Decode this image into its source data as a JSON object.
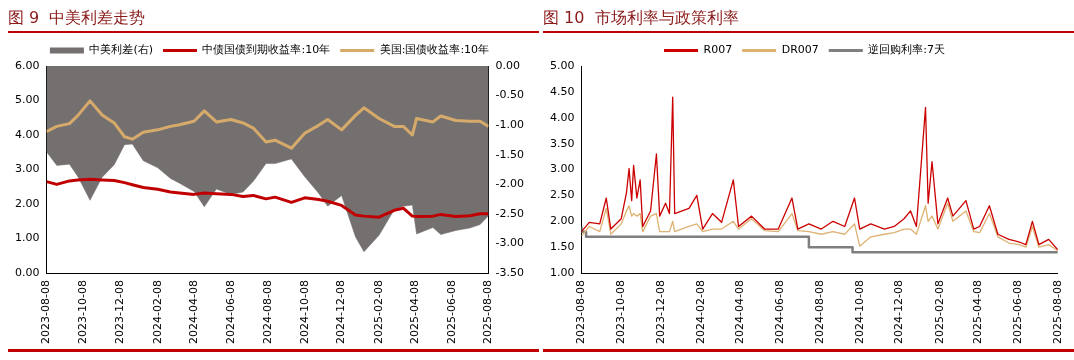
{
  "chart_data": [
    {
      "type": "line",
      "title": "图 9  中美利差走势",
      "legend": "top",
      "grid": false,
      "marker": "none",
      "x": [
        "2023-08-08",
        "2023-08-25",
        "2023-09-15",
        "2023-09-29",
        "2023-10-19",
        "2023-11-08",
        "2023-11-28",
        "2023-12-15",
        "2023-12-28",
        "2024-01-15",
        "2024-02-08",
        "2024-02-29",
        "2024-03-15",
        "2024-04-08",
        "2024-04-25",
        "2024-05-15",
        "2024-06-08",
        "2024-06-28",
        "2024-07-15",
        "2024-08-05",
        "2024-08-20",
        "2024-09-16",
        "2024-10-08",
        "2024-10-31",
        "2024-11-15",
        "2024-12-08",
        "2024-12-31",
        "2025-01-14",
        "2025-02-08",
        "2025-03-05",
        "2025-03-20",
        "2025-04-04",
        "2025-04-11",
        "2025-05-08",
        "2025-05-21",
        "2025-06-15",
        "2025-07-08",
        "2025-07-25",
        "2025-08-08"
      ],
      "series": [
        {
          "name": "中美利差(右)",
          "type": "area",
          "axis": "y2",
          "color": "#757070",
          "values": [
            -1.45,
            -1.68,
            -1.66,
            -1.87,
            -2.27,
            -1.88,
            -1.67,
            -1.33,
            -1.32,
            -1.6,
            -1.72,
            -1.9,
            -1.98,
            -2.12,
            -2.38,
            -2.08,
            -2.17,
            -2.13,
            -1.95,
            -1.65,
            -1.65,
            -1.57,
            -1.87,
            -2.15,
            -2.37,
            -2.19,
            -2.89,
            -3.14,
            -2.86,
            -2.43,
            -2.37,
            -2.35,
            -2.84,
            -2.73,
            -2.85,
            -2.78,
            -2.74,
            -2.68,
            -2.53
          ]
        },
        {
          "name": "中债国债到期收益率:10年",
          "color": "#c00000",
          "values": [
            2.65,
            2.57,
            2.67,
            2.7,
            2.72,
            2.7,
            2.68,
            2.62,
            2.56,
            2.48,
            2.43,
            2.35,
            2.32,
            2.28,
            2.32,
            2.3,
            2.28,
            2.22,
            2.25,
            2.15,
            2.2,
            2.05,
            2.18,
            2.13,
            2.08,
            1.96,
            1.68,
            1.65,
            1.62,
            1.82,
            1.88,
            1.65,
            1.64,
            1.65,
            1.7,
            1.64,
            1.66,
            1.72,
            1.72
          ]
        },
        {
          "name": "美国:国债收益率:10年",
          "color": "#d6aa6a",
          "values": [
            4.1,
            4.25,
            4.33,
            4.57,
            4.99,
            4.58,
            4.35,
            3.95,
            3.88,
            4.08,
            4.15,
            4.25,
            4.3,
            4.4,
            4.7,
            4.38,
            4.45,
            4.35,
            4.2,
            3.8,
            3.85,
            3.62,
            4.05,
            4.28,
            4.45,
            4.15,
            4.57,
            4.79,
            4.48,
            4.25,
            4.25,
            4,
            4.48,
            4.38,
            4.55,
            4.42,
            4.4,
            4.4,
            4.25
          ]
        }
      ],
      "xlim": [
        "2023-08-08",
        "2025-08-08"
      ],
      "xticks": [
        "2023-08-08",
        "2023-10-08",
        "2023-12-08",
        "2024-02-08",
        "2024-04-08",
        "2024-06-08",
        "2024-08-08",
        "2024-10-08",
        "2024-12-08",
        "2025-02-08",
        "2025-04-08",
        "2025-06-08",
        "2025-08-08"
      ],
      "ylim": [
        0,
        6
      ],
      "yticks": [
        {
          "value": 0,
          "label": "0.00"
        },
        {
          "value": 1,
          "label": "1.00"
        },
        {
          "value": 2,
          "label": "2.00"
        },
        {
          "value": 3,
          "label": "3.00"
        },
        {
          "value": 4,
          "label": "4.00"
        },
        {
          "value": 5,
          "label": "5.00"
        },
        {
          "value": 6,
          "label": "6.00"
        }
      ],
      "y2lim": [
        -3.5,
        0
      ],
      "y2ticks": [
        {
          "value": -3.5,
          "label": "-3.50"
        },
        {
          "value": -3,
          "label": "-3.00"
        },
        {
          "value": -2.5,
          "label": "-2.50"
        },
        {
          "value": -2,
          "label": "-2.00"
        },
        {
          "value": -1.5,
          "label": "-1.50"
        },
        {
          "value": -1,
          "label": "-1.00"
        },
        {
          "value": -0.5,
          "label": "-0.50"
        },
        {
          "value": 0,
          "label": "0.00"
        }
      ]
    },
    {
      "type": "line",
      "title": "图 10  市场利率与政策利率",
      "legend": "top",
      "grid": false,
      "marker": "none",
      "x": [
        "2023-08-08",
        "2023-08-20",
        "2023-09-05",
        "2023-09-15",
        "2023-09-22",
        "2023-10-08",
        "2023-10-16",
        "2023-10-20",
        "2023-10-24",
        "2023-10-27",
        "2023-11-01",
        "2023-11-06",
        "2023-11-10",
        "2023-11-22",
        "2023-12-01",
        "2023-12-06",
        "2023-12-15",
        "2023-12-21",
        "2023-12-26",
        "2023-12-29",
        "2024-01-20",
        "2024-02-01",
        "2024-02-10",
        "2024-02-25",
        "2024-03-10",
        "2024-03-28",
        "2024-04-05",
        "2024-04-25",
        "2024-05-15",
        "2024-06-05",
        "2024-06-26",
        "2024-07-05",
        "2024-07-22",
        "2024-08-10",
        "2024-08-28",
        "2024-09-15",
        "2024-09-30",
        "2024-10-08",
        "2024-10-25",
        "2024-11-15",
        "2024-11-30",
        "2024-12-15",
        "2024-12-25",
        "2025-01-03",
        "2025-01-17",
        "2025-01-21",
        "2025-01-27",
        "2025-02-05",
        "2025-02-20",
        "2025-02-28",
        "2025-03-20",
        "2025-04-01",
        "2025-04-10",
        "2025-04-25",
        "2025-05-08",
        "2025-05-25",
        "2025-06-10",
        "2025-06-20",
        "2025-06-30",
        "2025-07-10",
        "2025-07-25",
        "2025-08-08"
      ],
      "series": [
        {
          "name": "R007",
          "color": "#cc0000",
          "values": [
            1.8,
            1.98,
            1.95,
            2.45,
            1.85,
            2.05,
            2.55,
            3.02,
            2.4,
            3.08,
            2.45,
            2.8,
            1.9,
            2.2,
            3.3,
            2.1,
            2.35,
            2.15,
            4.4,
            2.15,
            2.25,
            2.5,
            1.85,
            2.15,
            1.98,
            2.8,
            1.9,
            2.1,
            1.85,
            1.85,
            2.45,
            1.85,
            1.95,
            1.85,
            2,
            1.9,
            2.45,
            1.85,
            1.95,
            1.85,
            1.9,
            2.05,
            2.2,
            1.9,
            4.2,
            2.35,
            3.15,
            1.95,
            2.45,
            2.1,
            2.4,
            1.85,
            1.9,
            2.3,
            1.75,
            1.65,
            1.6,
            1.55,
            2,
            1.55,
            1.65,
            1.45
          ]
        },
        {
          "name": "DR007",
          "color": "#deb273",
          "values": [
            1.72,
            1.9,
            1.8,
            2.25,
            1.75,
            1.95,
            2.2,
            2.3,
            2.1,
            2.15,
            2.1,
            2.15,
            1.8,
            2.1,
            2.15,
            1.8,
            1.8,
            1.8,
            2,
            1.8,
            1.9,
            1.95,
            1.8,
            1.85,
            1.85,
            2,
            1.85,
            2.05,
            1.82,
            1.8,
            2.15,
            1.82,
            1.8,
            1.75,
            1.8,
            1.75,
            1.95,
            1.52,
            1.7,
            1.75,
            1.78,
            1.85,
            1.85,
            1.75,
            2.3,
            2,
            2.1,
            1.85,
            2.35,
            2,
            2.2,
            1.8,
            1.78,
            2.15,
            1.7,
            1.58,
            1.55,
            1.5,
            1.9,
            1.5,
            1.55,
            1.43
          ]
        },
        {
          "name": "逆回购利率:7天",
          "type": "step",
          "color": "#7f7f7f",
          "x": [
            "2023-08-08",
            "2023-08-15",
            "2024-07-22",
            "2024-09-27",
            "2025-05-08",
            "2025-08-08"
          ],
          "values": [
            1.9,
            1.8,
            1.7,
            1.5,
            1.4,
            1.4
          ]
        }
      ],
      "xlim": [
        "2023-08-08",
        "2025-08-08"
      ],
      "xticks": [
        "2023-08-08",
        "2023-10-08",
        "2023-12-08",
        "2024-02-08",
        "2024-04-08",
        "2024-06-08",
        "2024-08-08",
        "2024-10-08",
        "2024-12-08",
        "2025-02-08",
        "2025-04-08",
        "2025-06-08",
        "2025-08-08"
      ],
      "ylim": [
        1,
        5
      ],
      "yticks": [
        {
          "value": 1,
          "label": "1.00"
        },
        {
          "value": 1.5,
          "label": "1.50"
        },
        {
          "value": 2,
          "label": "2.00"
        },
        {
          "value": 2.5,
          "label": "2.50"
        },
        {
          "value": 3,
          "label": "3.00"
        },
        {
          "value": 3.5,
          "label": "3.50"
        },
        {
          "value": 4,
          "label": "4.00"
        },
        {
          "value": 4.5,
          "label": "4.50"
        },
        {
          "value": 5,
          "label": "5.00"
        }
      ]
    }
  ]
}
